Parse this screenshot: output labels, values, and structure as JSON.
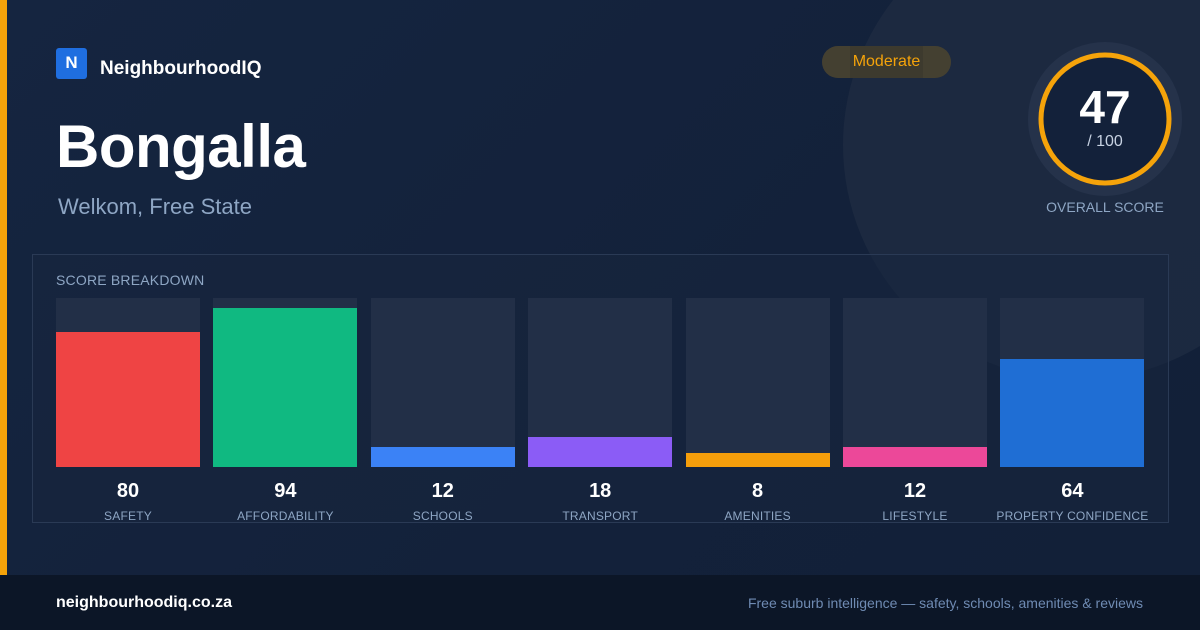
{
  "brand": {
    "mark": "N",
    "name": "NeighbourhoodIQ"
  },
  "suburb": {
    "name": "Bongalla",
    "location": "Welkom, Free State"
  },
  "badge": {
    "label": "Moderate"
  },
  "overall": {
    "value": 47,
    "max_label": "/ 100",
    "caption": "OVERALL SCORE",
    "ring_color": "#f5a30a"
  },
  "breakdown": {
    "title": "SCORE BREAKDOWN",
    "items": [
      {
        "label": "SAFETY",
        "value": 80,
        "color": "#ef4444"
      },
      {
        "label": "AFFORDABILITY",
        "value": 94,
        "color": "#10b981"
      },
      {
        "label": "SCHOOLS",
        "value": 12,
        "color": "#3b82f6"
      },
      {
        "label": "TRANSPORT",
        "value": 18,
        "color": "#8b5cf6"
      },
      {
        "label": "AMENITIES",
        "value": 8,
        "color": "#f59e0b"
      },
      {
        "label": "LIFESTYLE",
        "value": 12,
        "color": "#ec4899"
      },
      {
        "label": "PROPERTY CONFIDENCE",
        "value": 64,
        "color": "#1f6ed4"
      }
    ]
  },
  "footer": {
    "url": "neighbourhoodiq.co.za",
    "tagline": "Free suburb intelligence — safety, schools, amenities & reviews"
  },
  "chart_data": {
    "type": "bar",
    "title": "SCORE BREAKDOWN",
    "categories": [
      "SAFETY",
      "AFFORDABILITY",
      "SCHOOLS",
      "TRANSPORT",
      "AMENITIES",
      "LIFESTYLE",
      "PROPERTY CONFIDENCE"
    ],
    "values": [
      80,
      94,
      12,
      18,
      8,
      12,
      64
    ],
    "ylim": [
      0,
      100
    ],
    "grid": false
  }
}
